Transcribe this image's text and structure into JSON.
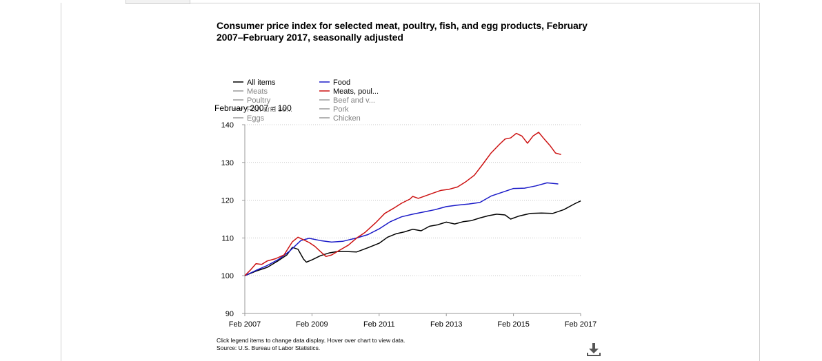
{
  "page": {
    "title": "Consumer price index for selected meat, poultry, fish, and egg products, February 2007–February 2017, seasonally adjusted",
    "note_interaction": "Click legend items to change data display. Hover over chart to view data.",
    "note_source": "Source: U.S. Bureau of Labor Statistics.",
    "download_icon": "download-icon"
  },
  "chart_data": {
    "type": "line",
    "title": "Consumer price index for selected meat, poultry, fish, and egg products, February 2007–February 2017, seasonally adjusted",
    "ylabel": "February 2007 = 100",
    "xlabel": "",
    "ylim": [
      90,
      140
    ],
    "yticks": [
      "90",
      "100",
      "110",
      "120",
      "130",
      "140"
    ],
    "xlim": [
      "2007-02",
      "2017-02"
    ],
    "xticks": [
      "Feb 2007",
      "Feb 2009",
      "Feb 2011",
      "Feb 2013",
      "Feb 2015",
      "Feb 2017"
    ],
    "grid": true,
    "legend_position": "top-left",
    "legend": [
      {
        "label": "All items",
        "color": "#000000",
        "active": true
      },
      {
        "label": "Food",
        "color": "#1a1ac8",
        "active": true
      },
      {
        "label": "Meats",
        "color": "#808080",
        "active": false
      },
      {
        "label": "Meats, poul...",
        "color": "#cc1111",
        "active": true
      },
      {
        "label": "Poultry",
        "color": "#808080",
        "active": false
      },
      {
        "label": "Beef and v...",
        "color": "#808080",
        "active": false
      },
      {
        "label": "Fish and se...",
        "color": "#808080",
        "active": false
      },
      {
        "label": "Pork",
        "color": "#808080",
        "active": false
      },
      {
        "label": "Eggs",
        "color": "#808080",
        "active": false
      },
      {
        "label": "Chicken",
        "color": "#808080",
        "active": false
      }
    ],
    "series": [
      {
        "name": "All items",
        "color": "#000000",
        "x": [
          "2007-02",
          "2007-06",
          "2007-10",
          "2008-02",
          "2008-05",
          "2008-07",
          "2008-09",
          "2008-11",
          "2008-12",
          "2009-02",
          "2009-05",
          "2009-08",
          "2009-11",
          "2010-02",
          "2010-06",
          "2010-10",
          "2011-02",
          "2011-05",
          "2011-08",
          "2011-11",
          "2012-02",
          "2012-05",
          "2012-08",
          "2012-11",
          "2013-02",
          "2013-05",
          "2013-08",
          "2013-11",
          "2014-02",
          "2014-05",
          "2014-08",
          "2014-11",
          "2015-01",
          "2015-04",
          "2015-08",
          "2015-12",
          "2016-04",
          "2016-08",
          "2016-12",
          "2017-02"
        ],
        "values": [
          100.0,
          101.2,
          102.2,
          104.0,
          105.5,
          107.5,
          107.0,
          104.4,
          103.6,
          104.2,
          105.3,
          106.0,
          106.4,
          106.4,
          106.3,
          107.4,
          108.6,
          110.2,
          111.1,
          111.6,
          112.3,
          111.9,
          113.1,
          113.5,
          114.2,
          113.7,
          114.3,
          114.6,
          115.3,
          115.9,
          116.3,
          116.1,
          115.0,
          115.8,
          116.5,
          116.6,
          116.5,
          117.5,
          119.1,
          119.8
        ]
      },
      {
        "name": "Food",
        "color": "#1a1ac8",
        "x": [
          "2007-02",
          "2007-06",
          "2007-10",
          "2008-02",
          "2008-06",
          "2008-10",
          "2009-01",
          "2009-05",
          "2009-09",
          "2010-01",
          "2010-06",
          "2010-10",
          "2011-02",
          "2011-06",
          "2011-10",
          "2012-02",
          "2012-06",
          "2012-10",
          "2013-02",
          "2013-06",
          "2013-10",
          "2014-02",
          "2014-06",
          "2014-10",
          "2015-02",
          "2015-06",
          "2015-10",
          "2016-02",
          "2016-06"
        ],
        "values": [
          100.0,
          101.4,
          102.7,
          104.3,
          106.5,
          109.3,
          109.9,
          109.3,
          108.9,
          109.1,
          110.0,
          110.9,
          112.4,
          114.3,
          115.6,
          116.3,
          116.9,
          117.5,
          118.3,
          118.7,
          119.0,
          119.4,
          121.1,
          122.1,
          123.1,
          123.2,
          123.8,
          124.6,
          124.3
        ]
      },
      {
        "name": "Meats, poultry, fish, and eggs",
        "color": "#cc1111",
        "x": [
          "2007-02",
          "2007-04",
          "2007-06",
          "2007-08",
          "2007-10",
          "2008-01",
          "2008-04",
          "2008-07",
          "2008-09",
          "2008-11",
          "2009-01",
          "2009-03",
          "2009-05",
          "2009-07",
          "2009-09",
          "2009-12",
          "2010-03",
          "2010-06",
          "2010-09",
          "2011-01",
          "2011-04",
          "2011-07",
          "2011-10",
          "2012-01",
          "2012-02",
          "2012-04",
          "2012-06",
          "2012-09",
          "2012-12",
          "2013-03",
          "2013-06",
          "2013-09",
          "2013-12",
          "2014-03",
          "2014-06",
          "2014-09",
          "2014-11",
          "2015-01",
          "2015-03",
          "2015-05",
          "2015-07",
          "2015-09",
          "2015-11",
          "2016-01",
          "2016-03",
          "2016-05",
          "2016-07"
        ],
        "values": [
          100.0,
          101.5,
          103.2,
          103.0,
          103.9,
          104.5,
          105.5,
          109.0,
          110.2,
          109.5,
          108.8,
          107.8,
          106.4,
          105.1,
          105.5,
          106.8,
          108.1,
          110.0,
          111.5,
          114.2,
          116.5,
          117.8,
          119.2,
          120.3,
          121.0,
          120.5,
          121.0,
          121.8,
          122.6,
          122.9,
          123.5,
          124.9,
          126.6,
          129.5,
          132.5,
          134.8,
          136.2,
          136.5,
          137.7,
          137.0,
          135.1,
          137.0,
          138.0,
          136.2,
          134.5,
          132.5,
          132.1
        ]
      }
    ]
  }
}
